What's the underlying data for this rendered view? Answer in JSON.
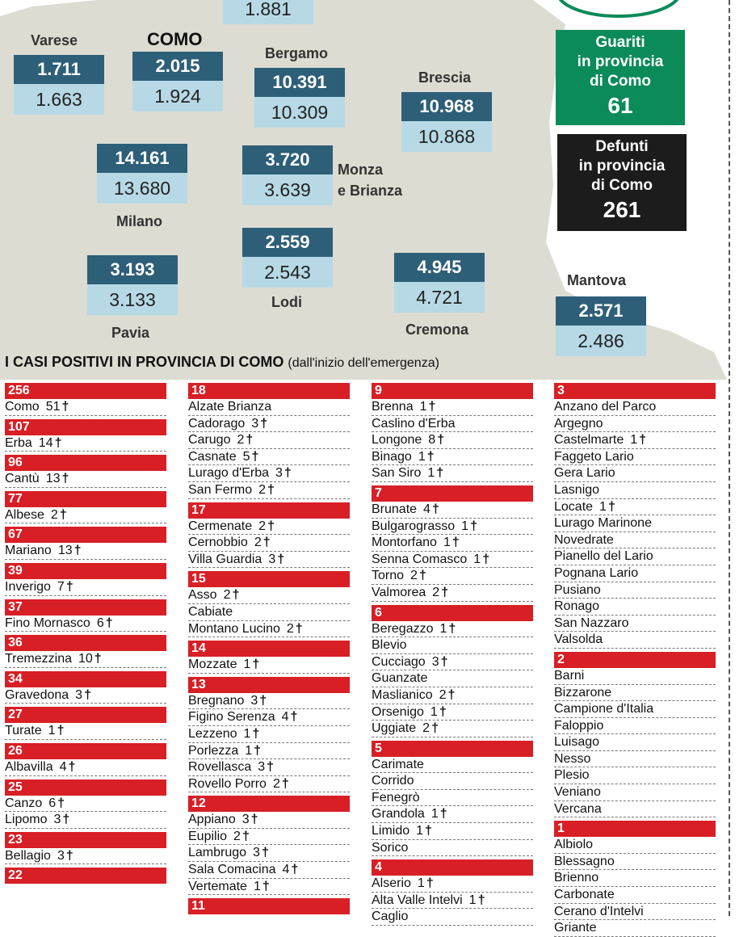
{
  "provinces": [
    {
      "name": "",
      "current": "",
      "previous": "1.881"
    },
    {
      "name": "Varese",
      "current": "1.711",
      "previous": "1.663"
    },
    {
      "name": "COMO",
      "current": "2.015",
      "previous": "1.924"
    },
    {
      "name": "Bergamo",
      "current": "10.391",
      "previous": "10.309"
    },
    {
      "name": "Brescia",
      "current": "10.968",
      "previous": "10.868"
    },
    {
      "name": "Milano",
      "current": "14.161",
      "previous": "13.680"
    },
    {
      "name": "Monza",
      "name2": "e Brianza",
      "current": "3.720",
      "previous": "3.639"
    },
    {
      "name": "Lodi",
      "current": "2.559",
      "previous": "2.543"
    },
    {
      "name": "Pavia",
      "current": "3.193",
      "previous": "3.133"
    },
    {
      "name": "Cremona",
      "current": "4.945",
      "previous": "4.721"
    },
    {
      "name": "Mantova",
      "current": "2.571",
      "previous": "2.486"
    }
  ],
  "recovered": {
    "label1": "Guariti",
    "label2": "in provincia",
    "label3": "di Como",
    "value": "61",
    "color": "#0b8a5a"
  },
  "deaths": {
    "label1": "Defunti",
    "label2": "in provincia",
    "label3": "di Como",
    "value": "261",
    "color": "#1c1c1c"
  },
  "section": {
    "title": "I CASI POSITIVI IN PROVINCIA DI COMO",
    "subtitle": "(dall'inizio dell'emergenza)"
  },
  "colors": {
    "header_red": "#d81f26",
    "box_dark": "#2e5f78",
    "box_light": "#b7d9e6",
    "map": "#dcdcd2"
  },
  "cross_symbol": "†",
  "columns": [
    [
      {
        "count": "256",
        "towns": [
          {
            "name": "Como",
            "deaths": "51"
          }
        ]
      },
      {
        "count": "107",
        "towns": [
          {
            "name": "Erba",
            "deaths": "14"
          }
        ]
      },
      {
        "count": "96",
        "towns": [
          {
            "name": "Cantù",
            "deaths": "13"
          }
        ]
      },
      {
        "count": "77",
        "towns": [
          {
            "name": "Albese",
            "deaths": "2"
          }
        ]
      },
      {
        "count": "67",
        "towns": [
          {
            "name": "Mariano",
            "deaths": "13"
          }
        ]
      },
      {
        "count": "39",
        "towns": [
          {
            "name": "Inverigo",
            "deaths": "7"
          }
        ]
      },
      {
        "count": "37",
        "towns": [
          {
            "name": "Fino Mornasco",
            "deaths": "6"
          }
        ]
      },
      {
        "count": "36",
        "towns": [
          {
            "name": "Tremezzina",
            "deaths": "10"
          }
        ]
      },
      {
        "count": "34",
        "towns": [
          {
            "name": "Gravedona",
            "deaths": "3"
          }
        ]
      },
      {
        "count": "27",
        "towns": [
          {
            "name": "Turate",
            "deaths": "1"
          }
        ]
      },
      {
        "count": "26",
        "towns": [
          {
            "name": "Albavilla",
            "deaths": "4"
          }
        ]
      },
      {
        "count": "25",
        "towns": [
          {
            "name": "Canzo",
            "deaths": "6"
          },
          {
            "name": "Lipomo",
            "deaths": "3"
          }
        ]
      },
      {
        "count": "23",
        "towns": [
          {
            "name": "Bellagio",
            "deaths": "3"
          }
        ]
      },
      {
        "count": "22",
        "towns": []
      }
    ],
    [
      {
        "count": "18",
        "towns": [
          {
            "name": "Alzate Brianza",
            "deaths": ""
          },
          {
            "name": "Cadorago",
            "deaths": "3"
          },
          {
            "name": "Carugo",
            "deaths": "2"
          },
          {
            "name": "Casnate",
            "deaths": "5"
          },
          {
            "name": "Lurago d'Erba",
            "deaths": "3"
          },
          {
            "name": "San Fermo",
            "deaths": "2"
          }
        ]
      },
      {
        "count": "17",
        "towns": [
          {
            "name": "Cermenate",
            "deaths": "2"
          },
          {
            "name": "Cernobbio",
            "deaths": "2"
          },
          {
            "name": "Villa Guardia",
            "deaths": "3"
          }
        ]
      },
      {
        "count": "15",
        "towns": [
          {
            "name": "Asso",
            "deaths": "2"
          },
          {
            "name": "Cabiate",
            "deaths": ""
          },
          {
            "name": "Montano Lucino",
            "deaths": "2"
          }
        ]
      },
      {
        "count": "14",
        "towns": [
          {
            "name": "Mozzate",
            "deaths": "1"
          }
        ]
      },
      {
        "count": "13",
        "towns": [
          {
            "name": "Bregnano",
            "deaths": "3"
          },
          {
            "name": "Figino Serenza",
            "deaths": "4"
          },
          {
            "name": "Lezzeno",
            "deaths": "1"
          },
          {
            "name": "Porlezza",
            "deaths": "1"
          },
          {
            "name": "Rovellasca",
            "deaths": "3"
          },
          {
            "name": "Rovello Porro",
            "deaths": "2"
          }
        ]
      },
      {
        "count": "12",
        "towns": [
          {
            "name": "Appiano",
            "deaths": "3"
          },
          {
            "name": "Eupilio",
            "deaths": "2"
          },
          {
            "name": "Lambrugo",
            "deaths": "3"
          },
          {
            "name": "Sala Comacina",
            "deaths": "4"
          },
          {
            "name": "Vertemate",
            "deaths": "1"
          }
        ]
      },
      {
        "count": "11",
        "towns": []
      }
    ],
    [
      {
        "count": "9",
        "towns": [
          {
            "name": "Brenna",
            "deaths": "1"
          },
          {
            "name": "Caslino d'Erba",
            "deaths": ""
          },
          {
            "name": "Longone",
            "deaths": "8"
          },
          {
            "name": "Binago",
            "deaths": "1"
          },
          {
            "name": "San Siro",
            "deaths": "1"
          }
        ]
      },
      {
        "count": "7",
        "towns": [
          {
            "name": "Brunate",
            "deaths": "4"
          },
          {
            "name": "Bulgarograsso",
            "deaths": "1"
          },
          {
            "name": "Montorfano",
            "deaths": "1"
          },
          {
            "name": "Senna Comasco",
            "deaths": "1"
          },
          {
            "name": "Torno",
            "deaths": "2"
          },
          {
            "name": "Valmorea",
            "deaths": "2"
          }
        ]
      },
      {
        "count": "6",
        "towns": [
          {
            "name": "Beregazzo",
            "deaths": "1"
          },
          {
            "name": "Blevio",
            "deaths": ""
          },
          {
            "name": "Cucciago",
            "deaths": "3"
          },
          {
            "name": "Guanzate",
            "deaths": ""
          },
          {
            "name": "Maslianico",
            "deaths": "2"
          },
          {
            "name": "Orsenigo",
            "deaths": "1"
          },
          {
            "name": "Uggiate",
            "deaths": "2"
          }
        ]
      },
      {
        "count": "5",
        "towns": [
          {
            "name": "Carimate",
            "deaths": ""
          },
          {
            "name": "Corrido",
            "deaths": ""
          },
          {
            "name": "Fenegrò",
            "deaths": ""
          },
          {
            "name": "Grandola",
            "deaths": "1"
          },
          {
            "name": "Limido",
            "deaths": "1"
          },
          {
            "name": "Sorico",
            "deaths": ""
          }
        ]
      },
      {
        "count": "4",
        "towns": [
          {
            "name": "Alserio",
            "deaths": "1"
          },
          {
            "name": "Alta Valle Intelvi",
            "deaths": "1"
          },
          {
            "name": "Caglio",
            "deaths": ""
          }
        ]
      }
    ],
    [
      {
        "count": "3",
        "towns": [
          {
            "name": "Anzano del Parco",
            "deaths": ""
          },
          {
            "name": "Argegno",
            "deaths": ""
          },
          {
            "name": "Castelmarte",
            "deaths": "1"
          },
          {
            "name": "Faggeto Lario",
            "deaths": ""
          },
          {
            "name": "Gera Lario",
            "deaths": ""
          },
          {
            "name": "Lasnigo",
            "deaths": ""
          },
          {
            "name": "Locate",
            "deaths": "1"
          },
          {
            "name": "Lurago Marinone",
            "deaths": ""
          },
          {
            "name": "Novedrate",
            "deaths": ""
          },
          {
            "name": "Pianello del Lario",
            "deaths": ""
          },
          {
            "name": "Pognana Lario",
            "deaths": ""
          },
          {
            "name": "Pusiano",
            "deaths": ""
          },
          {
            "name": "Ronago",
            "deaths": ""
          },
          {
            "name": "San Nazzaro",
            "deaths": ""
          },
          {
            "name": "Valsolda",
            "deaths": ""
          }
        ]
      },
      {
        "count": "2",
        "towns": [
          {
            "name": "Barni",
            "deaths": ""
          },
          {
            "name": "Bizzarone",
            "deaths": ""
          },
          {
            "name": "Campione d'Italia",
            "deaths": ""
          },
          {
            "name": "Faloppio",
            "deaths": ""
          },
          {
            "name": "Luisago",
            "deaths": ""
          },
          {
            "name": "Nesso",
            "deaths": ""
          },
          {
            "name": "Plesio",
            "deaths": ""
          },
          {
            "name": "Veniano",
            "deaths": ""
          },
          {
            "name": "Vercana",
            "deaths": ""
          }
        ]
      },
      {
        "count": "1",
        "towns": [
          {
            "name": "Albiolo",
            "deaths": ""
          },
          {
            "name": "Blessagno",
            "deaths": ""
          },
          {
            "name": "Brienno",
            "deaths": ""
          },
          {
            "name": "Carbonate",
            "deaths": ""
          },
          {
            "name": "Cerano d'Intelvi",
            "deaths": ""
          },
          {
            "name": "Griante",
            "deaths": ""
          }
        ]
      }
    ]
  ]
}
